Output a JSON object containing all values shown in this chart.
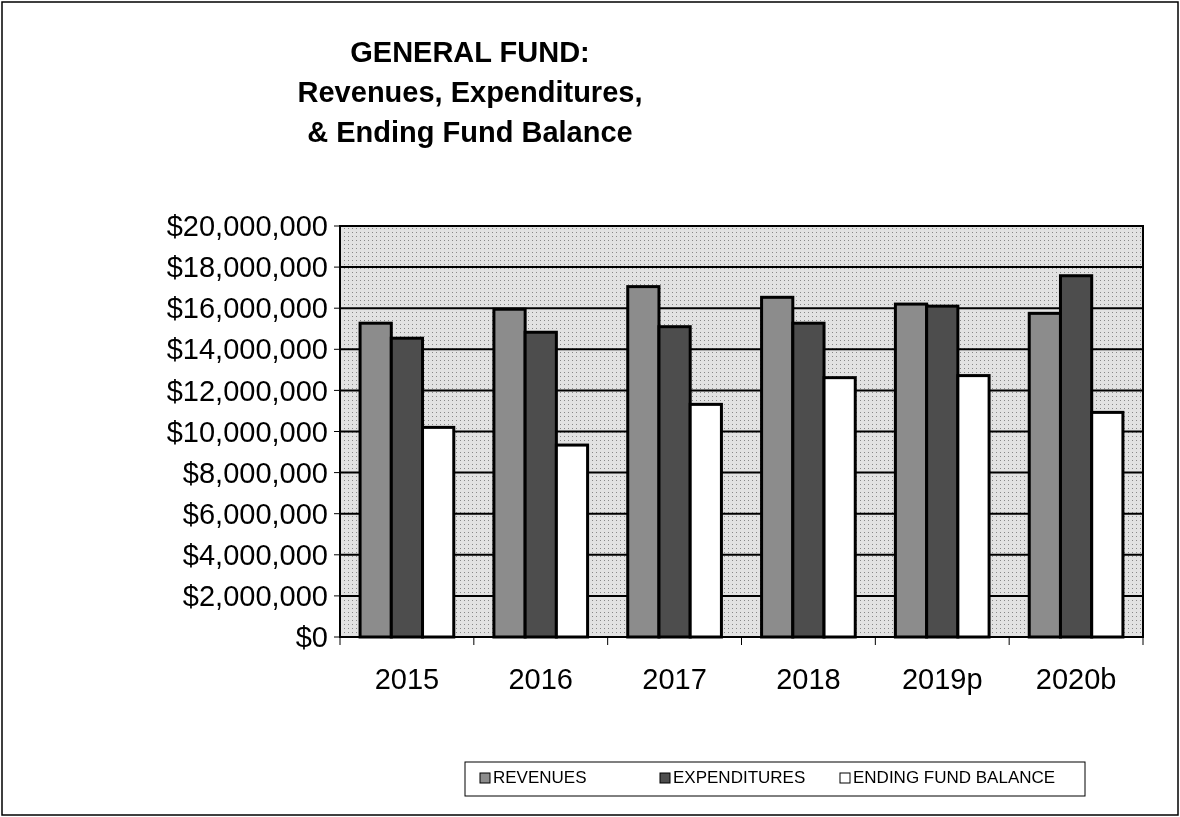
{
  "chart_data": {
    "type": "bar",
    "title": "GENERAL FUND:\nRevenues, Expenditures,\n& Ending Fund Balance",
    "categories": [
      "2015",
      "2016",
      "2017",
      "2018",
      "2019p",
      "2020b"
    ],
    "series": [
      {
        "name": "REVENUES",
        "color": "#8c8c8c",
        "values": [
          15270000,
          15950000,
          17050000,
          16530000,
          16200000,
          15750000
        ]
      },
      {
        "name": "EXPENDITURES",
        "color": "#4d4d4d",
        "values": [
          14540000,
          14830000,
          15100000,
          15270000,
          16100000,
          17580000
        ]
      },
      {
        "name": "ENDING FUND BALANCE",
        "color": "#ffffff",
        "values": [
          10200000,
          9340000,
          11320000,
          12620000,
          12720000,
          10930000
        ]
      }
    ],
    "ylim": [
      0,
      20000000
    ],
    "yticks": [
      {
        "value": 0,
        "label": "$0"
      },
      {
        "value": 2000000,
        "label": "$2,000,000"
      },
      {
        "value": 4000000,
        "label": "$4,000,000"
      },
      {
        "value": 6000000,
        "label": "$6,000,000"
      },
      {
        "value": 8000000,
        "label": "$8,000,000"
      },
      {
        "value": 10000000,
        "label": "$10,000,000"
      },
      {
        "value": 12000000,
        "label": "$12,000,000"
      },
      {
        "value": 14000000,
        "label": "$14,000,000"
      },
      {
        "value": 16000000,
        "label": "$16,000,000"
      },
      {
        "value": 18000000,
        "label": "$18,000,000"
      },
      {
        "value": 20000000,
        "label": "$20,000,000"
      }
    ],
    "grid": "y",
    "legend": "bottom"
  }
}
